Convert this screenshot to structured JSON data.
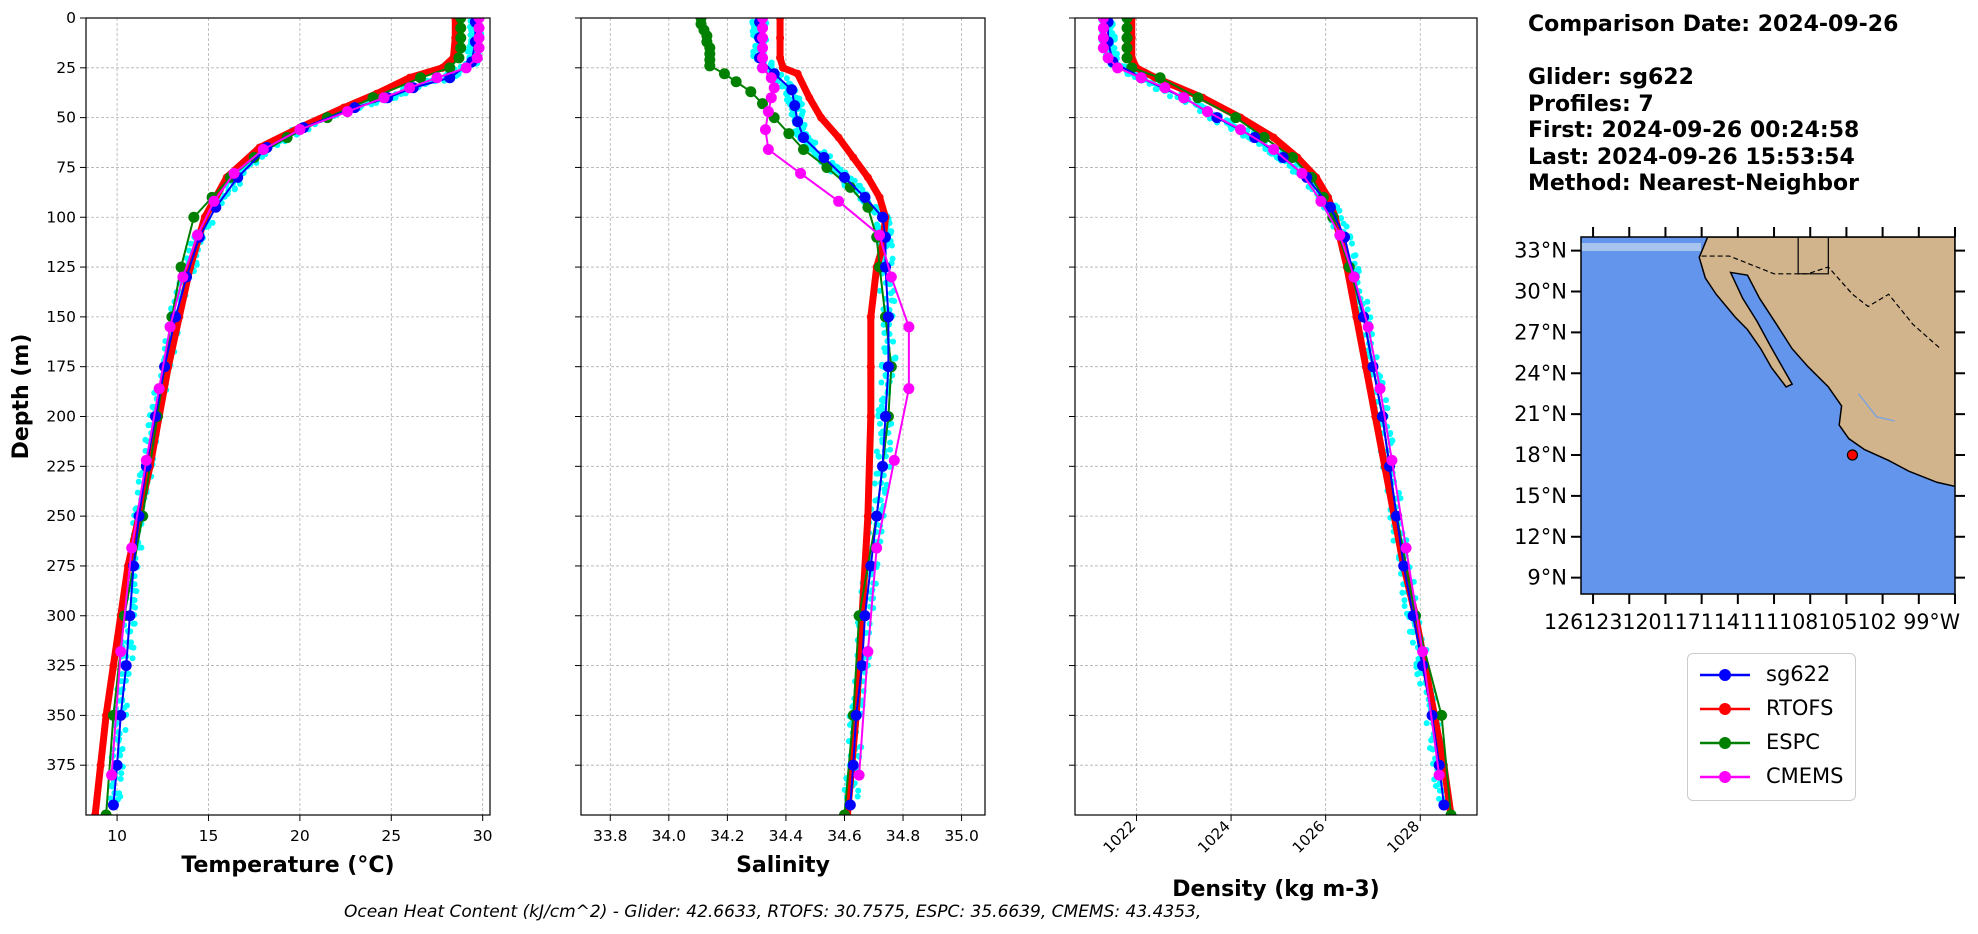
{
  "info": {
    "date_line": "Comparison Date: 2024-09-26",
    "glider_line": "Glider: sg622",
    "profiles_line": "Profiles: 7",
    "first_line": "First: 2024-09-26 00:24:58",
    "last_line": "Last: 2024-09-26 15:53:54",
    "method_line": "Method: Nearest-Neighbor"
  },
  "footer": "Ocean Heat Content (kJ/cm^2) - Glider: 42.6633,  RTOFS: 30.7575,  ESPC: 35.6639,  CMEMS: 43.4353,",
  "legend": [
    {
      "label": "sg622",
      "color": "#0000ff"
    },
    {
      "label": "RTOFS",
      "color": "#ff0000"
    },
    {
      "label": "ESPC",
      "color": "#008000"
    },
    {
      "label": "CMEMS",
      "color": "#ff00ff"
    }
  ],
  "colors": {
    "glider_raw": "#00ffff",
    "ocean": "#6495ed",
    "land": "#d2b48c",
    "shallow": "#a7c4ee"
  },
  "chart_data": [
    {
      "type": "line",
      "xlabel": "Temperature (°C)",
      "ylabel": "Depth (m)",
      "xlim": [
        8.3,
        30.4
      ],
      "ylim": [
        400,
        0
      ],
      "xticks": [
        10,
        15,
        20,
        25,
        30
      ],
      "yticks": [
        0,
        25,
        50,
        75,
        100,
        125,
        150,
        175,
        200,
        225,
        250,
        275,
        300,
        325,
        350,
        375
      ],
      "grid": true,
      "series": [
        {
          "name": "sg622",
          "depth": [
            2,
            12,
            22,
            30,
            35,
            40,
            45,
            55,
            65,
            80,
            95,
            110,
            130,
            150,
            175,
            200,
            225,
            250,
            275,
            300,
            325,
            350,
            375,
            395
          ],
          "values": [
            29.6,
            29.6,
            29.4,
            28.2,
            26.2,
            24.8,
            23.0,
            20.2,
            18.2,
            16.6,
            15.4,
            14.5,
            13.8,
            13.2,
            12.6,
            12.1,
            11.6,
            11.2,
            10.9,
            10.7,
            10.5,
            10.2,
            10.0,
            9.8
          ]
        },
        {
          "name": "RTOFS",
          "depth": [
            0,
            10,
            20,
            25,
            30,
            38,
            45,
            55,
            65,
            80,
            100,
            125,
            150,
            175,
            200,
            225,
            250,
            275,
            300,
            325,
            350,
            375,
            400
          ],
          "values": [
            28.5,
            28.5,
            28.4,
            27.8,
            26.0,
            24.2,
            22.4,
            20.0,
            17.8,
            16.0,
            14.8,
            14.0,
            13.4,
            12.8,
            12.3,
            11.8,
            11.2,
            10.6,
            10.2,
            9.8,
            9.4,
            9.1,
            8.8
          ]
        },
        {
          "name": "ESPC",
          "depth": [
            0,
            5,
            10,
            15,
            20,
            25,
            30,
            40,
            50,
            60,
            70,
            80,
            90,
            100,
            125,
            150,
            200,
            250,
            300,
            350,
            400
          ],
          "values": [
            28.8,
            28.8,
            28.8,
            28.8,
            28.7,
            28.2,
            26.6,
            24.0,
            21.5,
            19.3,
            17.5,
            16.2,
            15.2,
            14.2,
            13.5,
            13.0,
            12.2,
            11.4,
            10.4,
            9.8,
            9.4
          ]
        },
        {
          "name": "CMEMS",
          "depth": [
            0,
            5,
            10,
            15,
            20,
            25,
            30,
            35,
            40,
            47,
            56,
            66,
            78,
            92,
            109,
            130,
            155,
            186,
            222,
            266,
            318,
            380
          ],
          "values": [
            29.8,
            29.8,
            29.8,
            29.8,
            29.7,
            29.1,
            27.5,
            26.0,
            24.6,
            22.6,
            20.0,
            18.0,
            16.4,
            15.3,
            14.4,
            13.6,
            12.9,
            12.3,
            11.6,
            10.8,
            10.2,
            9.7
          ]
        }
      ],
      "raw_glider": {
        "depth": [
          2,
          12,
          22,
          30,
          35,
          40,
          45,
          55,
          65,
          80,
          95,
          110,
          130,
          150,
          175,
          200,
          225,
          250,
          275,
          300,
          325,
          350,
          375,
          395
        ],
        "values": [
          29.6,
          29.6,
          29.4,
          28.2,
          26.2,
          24.8,
          23.0,
          20.2,
          18.2,
          16.6,
          15.4,
          14.5,
          13.8,
          13.2,
          12.6,
          12.1,
          11.6,
          11.2,
          10.9,
          10.7,
          10.5,
          10.2,
          10.0,
          9.8
        ],
        "spread": 0.35
      }
    },
    {
      "type": "line",
      "xlabel": "Salinity",
      "xlim": [
        33.7,
        35.08
      ],
      "ylim": [
        400,
        0
      ],
      "xticks": [
        33.8,
        34.0,
        34.2,
        34.4,
        34.6,
        34.8,
        35.0
      ],
      "grid": true,
      "series": [
        {
          "name": "sg622",
          "depth": [
            2,
            10,
            20,
            28,
            36,
            44,
            52,
            60,
            70,
            80,
            90,
            100,
            110,
            125,
            150,
            175,
            200,
            225,
            250,
            275,
            300,
            325,
            350,
            375,
            395
          ],
          "values": [
            34.31,
            34.31,
            34.31,
            34.36,
            34.42,
            34.43,
            34.44,
            34.46,
            34.53,
            34.6,
            34.67,
            34.73,
            34.74,
            34.74,
            34.75,
            34.75,
            34.74,
            34.73,
            34.71,
            34.69,
            34.67,
            34.66,
            34.64,
            34.63,
            34.62
          ]
        },
        {
          "name": "RTOFS",
          "depth": [
            0,
            10,
            20,
            25,
            28,
            40,
            50,
            60,
            70,
            80,
            90,
            100,
            115,
            125,
            150,
            175,
            200,
            250,
            300,
            350,
            400
          ],
          "values": [
            34.38,
            34.38,
            34.38,
            34.39,
            34.44,
            34.48,
            34.52,
            34.58,
            34.63,
            34.68,
            34.72,
            34.74,
            34.73,
            34.71,
            34.69,
            34.69,
            34.69,
            34.68,
            34.66,
            34.64,
            34.61
          ]
        },
        {
          "name": "ESPC",
          "depth": [
            0,
            3,
            6,
            9,
            12,
            15,
            18,
            21,
            24,
            28,
            32,
            37,
            43,
            50,
            58,
            66,
            75,
            85,
            95,
            110,
            125,
            150,
            175,
            200,
            250,
            300,
            350,
            400
          ],
          "values": [
            34.11,
            34.11,
            34.12,
            34.13,
            34.13,
            34.14,
            34.14,
            34.14,
            34.14,
            34.19,
            34.23,
            34.28,
            34.32,
            34.36,
            34.41,
            34.46,
            34.54,
            34.62,
            34.68,
            34.71,
            34.72,
            34.74,
            34.76,
            34.75,
            34.71,
            34.65,
            34.63,
            34.6
          ]
        },
        {
          "name": "CMEMS",
          "depth": [
            0,
            5,
            10,
            15,
            20,
            25,
            30,
            35,
            40,
            47,
            56,
            66,
            78,
            92,
            109,
            130,
            155,
            186,
            222,
            266,
            318,
            380
          ],
          "values": [
            34.32,
            34.32,
            34.32,
            34.32,
            34.32,
            34.32,
            34.35,
            34.36,
            34.35,
            34.34,
            34.33,
            34.34,
            34.45,
            34.58,
            34.72,
            34.76,
            34.82,
            34.82,
            34.77,
            34.71,
            34.68,
            34.65
          ]
        }
      ],
      "raw_glider": {
        "depth": [
          2,
          10,
          20,
          28,
          36,
          44,
          52,
          60,
          70,
          80,
          90,
          100,
          110,
          125,
          150,
          175,
          200,
          225,
          250,
          275,
          300,
          325,
          350,
          375,
          395
        ],
        "values": [
          34.31,
          34.31,
          34.31,
          34.36,
          34.42,
          34.43,
          34.44,
          34.46,
          34.53,
          34.6,
          34.67,
          34.73,
          34.74,
          34.74,
          34.75,
          34.75,
          34.74,
          34.73,
          34.71,
          34.69,
          34.67,
          34.66,
          34.64,
          34.63,
          34.62
        ],
        "spread": 0.025
      }
    },
    {
      "type": "line",
      "xlabel": "Density (kg m-3)",
      "xlim": [
        1020.7,
        1029.2
      ],
      "ylim": [
        400,
        0
      ],
      "xticks": [
        1022,
        1024,
        1026,
        1028
      ],
      "grid": true,
      "series": [
        {
          "name": "sg622",
          "depth": [
            2,
            12,
            22,
            30,
            40,
            50,
            60,
            70,
            80,
            95,
            110,
            130,
            150,
            175,
            200,
            225,
            250,
            275,
            300,
            325,
            350,
            375,
            395
          ],
          "values": [
            1021.4,
            1021.4,
            1021.5,
            1022.1,
            1023.0,
            1023.7,
            1024.5,
            1025.1,
            1025.6,
            1026.1,
            1026.4,
            1026.6,
            1026.8,
            1027.0,
            1027.2,
            1027.35,
            1027.5,
            1027.65,
            1027.85,
            1028.05,
            1028.25,
            1028.4,
            1028.5
          ]
        },
        {
          "name": "RTOFS",
          "depth": [
            0,
            10,
            20,
            25,
            30,
            40,
            50,
            60,
            70,
            80,
            90,
            100,
            125,
            150,
            175,
            200,
            225,
            250,
            275,
            300,
            325,
            350,
            375,
            400
          ],
          "values": [
            1021.9,
            1021.9,
            1021.9,
            1022.0,
            1022.4,
            1023.4,
            1024.2,
            1024.9,
            1025.4,
            1025.8,
            1026.05,
            1026.2,
            1026.45,
            1026.65,
            1026.85,
            1027.05,
            1027.25,
            1027.45,
            1027.65,
            1027.9,
            1028.1,
            1028.3,
            1028.5,
            1028.65
          ]
        },
        {
          "name": "ESPC",
          "depth": [
            0,
            5,
            10,
            15,
            20,
            25,
            30,
            40,
            50,
            60,
            70,
            80,
            90,
            100,
            125,
            150,
            200,
            250,
            300,
            350,
            400
          ],
          "values": [
            1021.8,
            1021.8,
            1021.8,
            1021.8,
            1021.8,
            1021.9,
            1022.5,
            1023.3,
            1024.1,
            1024.7,
            1025.3,
            1025.7,
            1025.95,
            1026.15,
            1026.5,
            1026.8,
            1027.2,
            1027.5,
            1027.9,
            1028.45,
            1028.65
          ]
        },
        {
          "name": "CMEMS",
          "depth": [
            0,
            5,
            10,
            15,
            20,
            25,
            30,
            35,
            40,
            47,
            56,
            66,
            78,
            92,
            109,
            130,
            155,
            186,
            222,
            266,
            318,
            380
          ],
          "values": [
            1021.3,
            1021.3,
            1021.3,
            1021.3,
            1021.4,
            1021.6,
            1022.1,
            1022.6,
            1023.0,
            1023.5,
            1024.2,
            1024.9,
            1025.5,
            1025.9,
            1026.3,
            1026.6,
            1026.9,
            1027.15,
            1027.4,
            1027.7,
            1028.05,
            1028.4
          ]
        }
      ],
      "raw_glider": {
        "depth": [
          2,
          12,
          22,
          30,
          40,
          50,
          60,
          70,
          80,
          95,
          110,
          130,
          150,
          175,
          200,
          225,
          250,
          275,
          300,
          325,
          350,
          375,
          395
        ],
        "values": [
          1021.4,
          1021.4,
          1021.5,
          1022.1,
          1023.0,
          1023.7,
          1024.5,
          1025.1,
          1025.6,
          1026.1,
          1026.4,
          1026.6,
          1026.8,
          1027.0,
          1027.2,
          1027.35,
          1027.5,
          1027.65,
          1027.85,
          1028.05,
          1028.25,
          1028.4,
          1028.5
        ],
        "spread": 0.15
      }
    }
  ],
  "map": {
    "lat_labels": [
      "33°N",
      "30°N",
      "27°N",
      "24°N",
      "21°N",
      "18°N",
      "15°N",
      "12°N",
      "9°N"
    ],
    "lat_values": [
      33,
      30,
      27,
      24,
      21,
      18,
      15,
      12,
      9
    ],
    "lon_label_text": "126123120117114111108105102 99°W",
    "lat_range": [
      7.8,
      34
    ],
    "lon_range": [
      -127,
      -96
    ],
    "glider_position": {
      "lat": 18.0,
      "lon": -104.5
    }
  }
}
